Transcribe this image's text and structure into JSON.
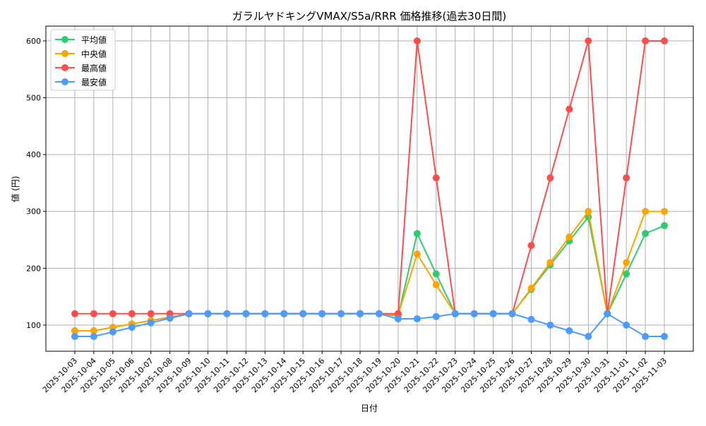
{
  "chart_data": {
    "type": "line",
    "title": "ガラルヤドキングVMAX/S5a/RRR 価格推移(過去30日間)",
    "xlabel": "日付",
    "ylabel": "値 (円)",
    "ylim": [
      54,
      626
    ],
    "yticks": [
      100,
      200,
      300,
      400,
      500,
      600
    ],
    "grid": true,
    "legend_position": "top-left",
    "x": [
      "2025-10-03",
      "2025-10-04",
      "2025-10-05",
      "2025-10-06",
      "2025-10-07",
      "2025-10-08",
      "2025-10-09",
      "2025-10-10",
      "2025-10-11",
      "2025-10-12",
      "2025-10-13",
      "2025-10-14",
      "2025-10-15",
      "2025-10-16",
      "2025-10-17",
      "2025-10-18",
      "2025-10-19",
      "2025-10-20",
      "2025-10-21",
      "2025-10-22",
      "2025-10-23",
      "2025-10-24",
      "2025-10-25",
      "2025-10-26",
      "2025-10-27",
      "2025-10-28",
      "2025-10-29",
      "2025-10-30",
      "2025-10-31",
      "2025-11-01",
      "2025-11-02",
      "2025-11-03"
    ],
    "series": [
      {
        "name": "平均値",
        "color": "#2ecc71",
        "values": [
          90,
          90,
          96,
          102,
          108,
          114,
          120,
          120,
          120,
          120,
          120,
          120,
          120,
          120,
          120,
          120,
          120,
          116,
          261,
          190,
          120,
          120,
          120,
          120,
          163,
          206,
          248,
          290,
          120,
          190,
          261,
          275
        ]
      },
      {
        "name": "中央値",
        "color": "#ffa500",
        "values": [
          90,
          90,
          96,
          102,
          108,
          114,
          120,
          120,
          120,
          120,
          120,
          120,
          120,
          120,
          120,
          120,
          120,
          118,
          225,
          171,
          120,
          120,
          120,
          120,
          165,
          210,
          255,
          300,
          120,
          210,
          300,
          300
        ]
      },
      {
        "name": "最高値",
        "color": "#ff4c4c",
        "values": [
          120,
          120,
          120,
          120,
          120,
          120,
          120,
          120,
          120,
          120,
          120,
          120,
          120,
          120,
          120,
          120,
          120,
          120,
          600,
          359,
          120,
          120,
          120,
          120,
          240,
          359,
          480,
          600,
          120,
          359,
          600,
          600
        ]
      },
      {
        "name": "最安値",
        "color": "#4c9bff",
        "values": [
          80,
          80,
          88,
          96,
          104,
          112,
          120,
          120,
          120,
          120,
          120,
          120,
          120,
          120,
          120,
          120,
          120,
          111,
          111,
          115,
          120,
          120,
          120,
          120,
          110,
          100,
          90,
          80,
          120,
          100,
          80,
          80
        ]
      }
    ]
  }
}
